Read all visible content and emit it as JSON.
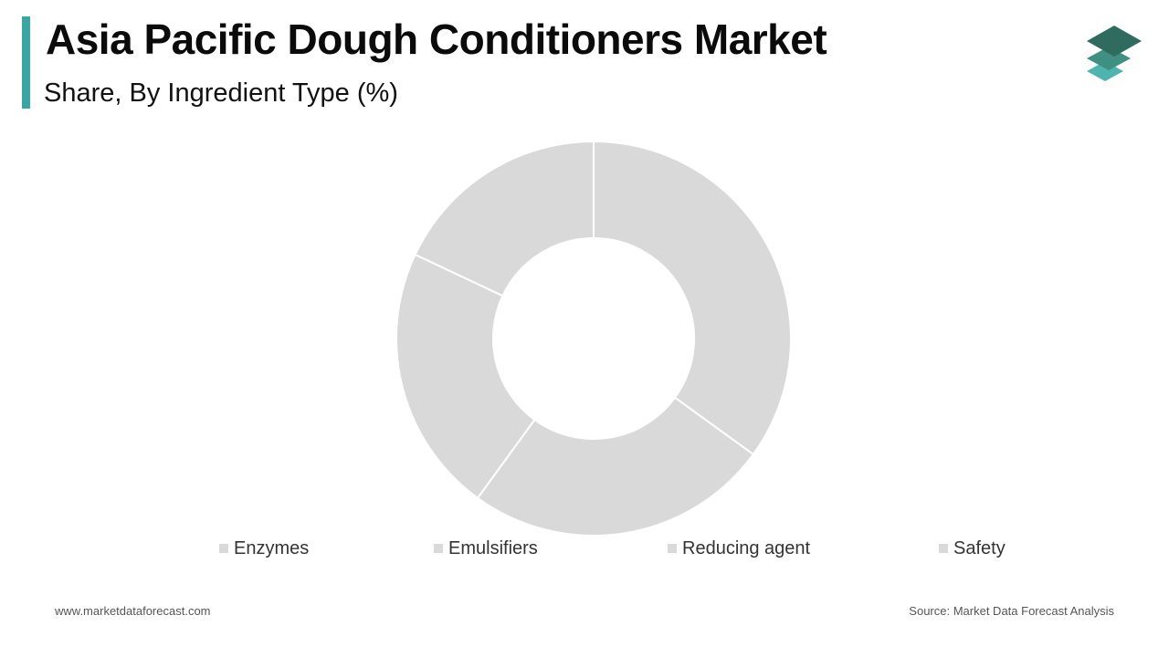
{
  "header": {
    "title": "Asia Pacific Dough Conditioners Market",
    "subtitle": "Share, By Ingredient Type (%)",
    "accent_color": "#3aa6a2"
  },
  "logo": {
    "icon": "stacked-layers-icon",
    "colors": [
      "#2f6b5e",
      "#3f8f82",
      "#4fb3b0"
    ]
  },
  "chart_data": {
    "type": "pie",
    "style": "donut",
    "categories": [
      "Enzymes",
      "Emulsifiers",
      "Reducing agent",
      "Safety"
    ],
    "values": [
      35,
      25,
      22,
      18
    ],
    "unit": "%",
    "slice_color": "#d9d9d9",
    "separator_color": "#ffffff",
    "start_direction": "top",
    "order": "clockwise",
    "legend_placement": "bottom"
  },
  "footer": {
    "left": "www.marketdataforecast.com",
    "right": "Source: Market Data Forecast Analysis"
  }
}
